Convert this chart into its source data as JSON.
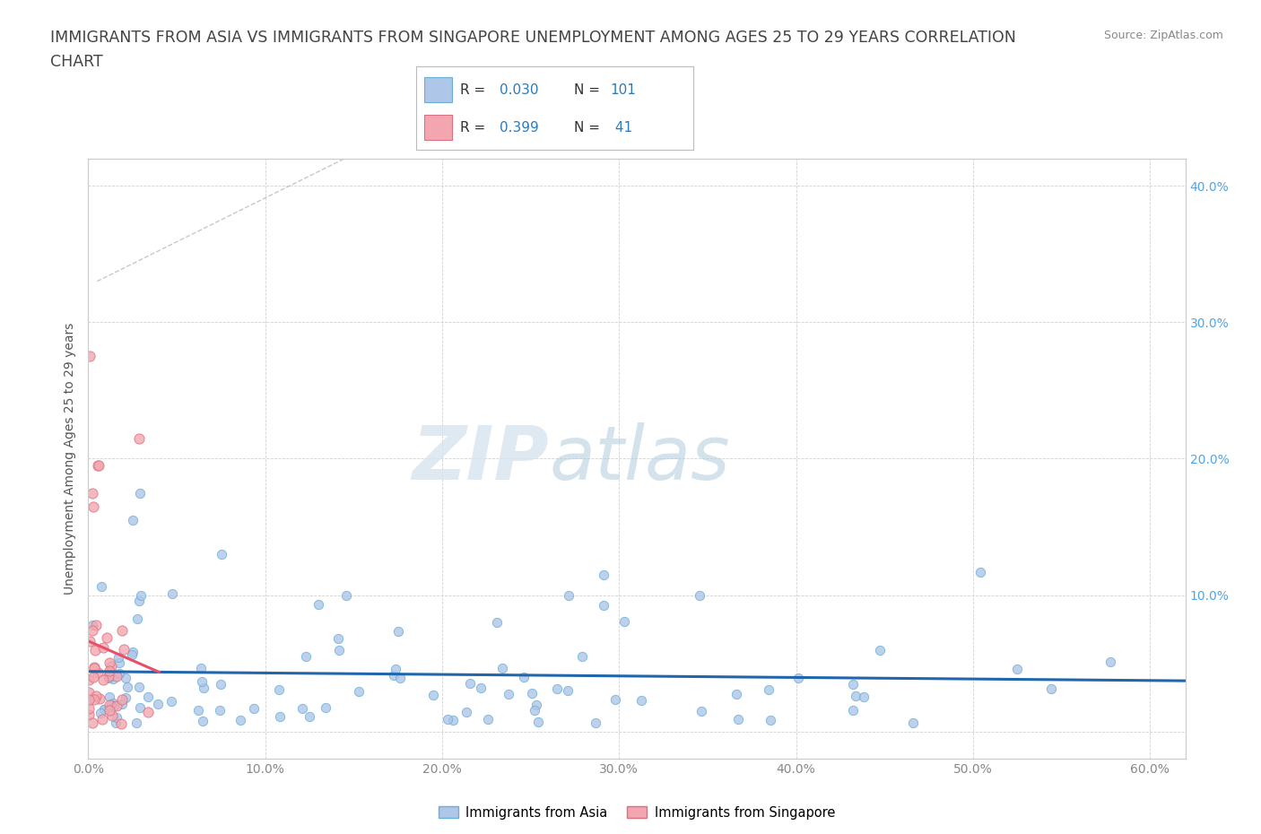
{
  "title_line1": "IMMIGRANTS FROM ASIA VS IMMIGRANTS FROM SINGAPORE UNEMPLOYMENT AMONG AGES 25 TO 29 YEARS CORRELATION",
  "title_line2": "CHART",
  "source_text": "Source: ZipAtlas.com",
  "ylabel": "Unemployment Among Ages 25 to 29 years",
  "xlim": [
    0.0,
    0.62
  ],
  "ylim": [
    -0.02,
    0.42
  ],
  "xticks": [
    0.0,
    0.1,
    0.2,
    0.3,
    0.4,
    0.5,
    0.6
  ],
  "xtick_labels": [
    "0.0%",
    "10.0%",
    "20.0%",
    "30.0%",
    "40.0%",
    "50.0%",
    "60.0%"
  ],
  "yticks": [
    0.0,
    0.1,
    0.2,
    0.3,
    0.4
  ],
  "right_ytick_labels": [
    "",
    "10.0%",
    "20.0%",
    "30.0%",
    "40.0%"
  ],
  "asia_color": "#aec6e8",
  "asia_edge": "#6baed6",
  "singapore_color": "#f4a6b0",
  "singapore_edge": "#d9717f",
  "trend_asia_color": "#2166ac",
  "trend_singapore_color": "#e8506a",
  "background_color": "#ffffff",
  "grid_color": "#cccccc",
  "watermark_zip": "ZIP",
  "watermark_atlas": "atlas",
  "asia_N": 101,
  "singapore_N": 41,
  "title_fontsize": 12.5,
  "axis_label_fontsize": 10,
  "tick_fontsize": 10
}
